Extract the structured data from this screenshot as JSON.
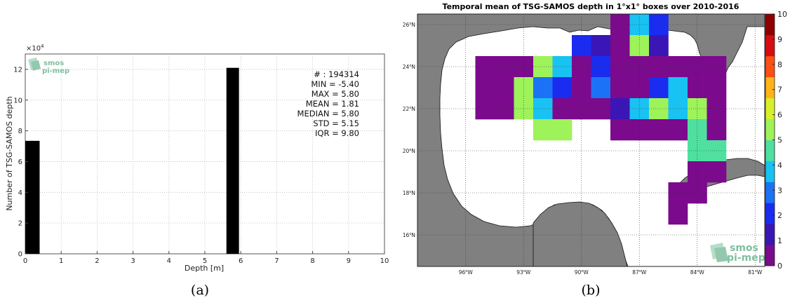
{
  "chart_data": [
    {
      "type": "bar",
      "panel_caption": "(a)",
      "xlabel": "Depth [m]",
      "ylabel": "Number of TSG-SAMOS depth",
      "y_multiplier": "×10",
      "y_multiplier_exp": "4",
      "xlim": [
        0,
        10
      ],
      "ylim": [
        0,
        13
      ],
      "x_ticks": [
        "0",
        "1",
        "2",
        "3",
        "4",
        "5",
        "6",
        "7",
        "8",
        "9",
        "10"
      ],
      "y_ticks": [
        "0",
        "2",
        "4",
        "6",
        "8",
        "10",
        "12"
      ],
      "y_tick_values": [
        0,
        2,
        4,
        6,
        8,
        10,
        12
      ],
      "bars": [
        {
          "x_start": 0.0,
          "x_end": 0.4,
          "value": 7.35
        },
        {
          "x_start": 5.6,
          "x_end": 5.95,
          "value": 12.1
        }
      ],
      "stats": {
        "n": "# : 194314",
        "min": "MIN = -5.40",
        "max": "MAX =  5.80",
        "mean": "MEAN = 1.81",
        "median": "MEDIAN = 5.80",
        "std": "STD = 5.15",
        "iqr": "IQR = 9.80"
      },
      "logo": {
        "line1": "smos",
        "line2": "pi-mep"
      },
      "grid": true,
      "bar_color": "#000000"
    },
    {
      "type": "heatmap",
      "panel_caption": "(b)",
      "title": "Temporal mean of TSG-SAMOS depth in 1°x1° boxes over 2010-2016",
      "lon_range": [
        -98.5,
        -80.5
      ],
      "lat_range": [
        14.5,
        26.5
      ],
      "lon_ticks": [
        {
          "value": -96,
          "deg": "96",
          "hemi": "W"
        },
        {
          "value": -93,
          "deg": "93",
          "hemi": "W"
        },
        {
          "value": -90,
          "deg": "90",
          "hemi": "W"
        },
        {
          "value": -87,
          "deg": "87",
          "hemi": "W"
        },
        {
          "value": -84,
          "deg": "84",
          "hemi": "W"
        },
        {
          "value": -81,
          "deg": "81",
          "hemi": "W"
        }
      ],
      "lat_ticks": [
        {
          "value": 16,
          "deg": "16",
          "hemi": "N"
        },
        {
          "value": 18,
          "deg": "18",
          "hemi": "N"
        },
        {
          "value": 20,
          "deg": "20",
          "hemi": "N"
        },
        {
          "value": 22,
          "deg": "22",
          "hemi": "N"
        },
        {
          "value": 24,
          "deg": "24",
          "hemi": "N"
        },
        {
          "value": 26,
          "deg": "26",
          "hemi": "N"
        }
      ],
      "colorbar": {
        "min": 0,
        "max": 10,
        "ticks": [
          "0",
          "1",
          "2",
          "3",
          "4",
          "5",
          "6",
          "7",
          "8",
          "9",
          "10"
        ],
        "colors": [
          "#7b0a8c",
          "#3a16b6",
          "#1a2cf0",
          "#1c72f5",
          "#18c2f2",
          "#4fe0a0",
          "#9ef25a",
          "#d8f028",
          "#ffb41a",
          "#ff5014",
          "#d80c10",
          "#8e0000"
        ]
      },
      "cells": [
        {
          "lon": -88,
          "lat": 26,
          "value": 0.5
        },
        {
          "lon": -87,
          "lat": 26,
          "value": 3.9
        },
        {
          "lon": -86,
          "lat": 26,
          "value": 2.2
        },
        {
          "lon": -90,
          "lat": 25,
          "value": 2.0
        },
        {
          "lon": -89,
          "lat": 25,
          "value": 1.6
        },
        {
          "lon": -88,
          "lat": 25,
          "value": 0.8
        },
        {
          "lon": -87,
          "lat": 25,
          "value": 5.1
        },
        {
          "lon": -86,
          "lat": 25,
          "value": 0.9
        },
        {
          "lon": -95,
          "lat": 24,
          "value": 0.2
        },
        {
          "lon": -94,
          "lat": 24,
          "value": 0.2
        },
        {
          "lon": -93,
          "lat": 24,
          "value": 0.3
        },
        {
          "lon": -92,
          "lat": 24,
          "value": 5.6
        },
        {
          "lon": -91,
          "lat": 24,
          "value": 3.6
        },
        {
          "lon": -90,
          "lat": 24,
          "value": 0.2
        },
        {
          "lon": -89,
          "lat": 24,
          "value": 2.2
        },
        {
          "lon": -88,
          "lat": 24,
          "value": 0.3
        },
        {
          "lon": -87,
          "lat": 24,
          "value": 0.3
        },
        {
          "lon": -86,
          "lat": 24,
          "value": 0.3
        },
        {
          "lon": -85,
          "lat": 24,
          "value": 0.3
        },
        {
          "lon": -84,
          "lat": 24,
          "value": 0.3
        },
        {
          "lon": -83,
          "lat": 24,
          "value": 0.3
        },
        {
          "lon": -95,
          "lat": 23,
          "value": 0.3
        },
        {
          "lon": -94,
          "lat": 23,
          "value": 0.2
        },
        {
          "lon": -93,
          "lat": 23,
          "value": 5.3
        },
        {
          "lon": -92,
          "lat": 23,
          "value": 2.8
        },
        {
          "lon": -91,
          "lat": 23,
          "value": 2.0
        },
        {
          "lon": -90,
          "lat": 23,
          "value": 0.2
        },
        {
          "lon": -89,
          "lat": 23,
          "value": 2.8
        },
        {
          "lon": -88,
          "lat": 23,
          "value": 0.3
        },
        {
          "lon": -87,
          "lat": 23,
          "value": 0.2
        },
        {
          "lon": -86,
          "lat": 23,
          "value": 1.7
        },
        {
          "lon": -85,
          "lat": 23,
          "value": 3.8
        },
        {
          "lon": -84,
          "lat": 23,
          "value": 0.6
        },
        {
          "lon": -83,
          "lat": 23,
          "value": 0.5
        },
        {
          "lon": -95,
          "lat": 22,
          "value": 0.3
        },
        {
          "lon": -94,
          "lat": 22,
          "value": 0.3
        },
        {
          "lon": -93,
          "lat": 22,
          "value": 5.3
        },
        {
          "lon": -92,
          "lat": 22,
          "value": 4.1
        },
        {
          "lon": -91,
          "lat": 22,
          "value": 0.2
        },
        {
          "lon": -90,
          "lat": 22,
          "value": 0.4
        },
        {
          "lon": -89,
          "lat": 22,
          "value": 0.2
        },
        {
          "lon": -88,
          "lat": 22,
          "value": 1.3
        },
        {
          "lon": -87,
          "lat": 22,
          "value": 3.8
        },
        {
          "lon": -86,
          "lat": 22,
          "value": 5.6
        },
        {
          "lon": -85,
          "lat": 22,
          "value": 3.8
        },
        {
          "lon": -84,
          "lat": 22,
          "value": 5.0
        },
        {
          "lon": -83,
          "lat": 22,
          "value": 0.3
        },
        {
          "lon": -92,
          "lat": 21,
          "value": 5.5
        },
        {
          "lon": -91,
          "lat": 21,
          "value": 5.5
        },
        {
          "lon": -88,
          "lat": 21,
          "value": 0.3
        },
        {
          "lon": -87,
          "lat": 21,
          "value": 0.3
        },
        {
          "lon": -86,
          "lat": 21,
          "value": 0.3
        },
        {
          "lon": -85,
          "lat": 21,
          "value": 0.3
        },
        {
          "lon": -84,
          "lat": 21,
          "value": 4.8
        },
        {
          "lon": -83,
          "lat": 21,
          "value": 0.3
        },
        {
          "lon": -84,
          "lat": 20,
          "value": 4.6
        },
        {
          "lon": -83,
          "lat": 20,
          "value": 4.6
        },
        {
          "lon": -84,
          "lat": 19,
          "value": 0.3
        },
        {
          "lon": -83,
          "lat": 19,
          "value": 0.3
        },
        {
          "lon": -85,
          "lat": 18,
          "value": 0.3
        },
        {
          "lon": -84,
          "lat": 18,
          "value": 0.3
        },
        {
          "lon": -85,
          "lat": 17,
          "value": 0.3
        }
      ],
      "logo": {
        "line1": "smos",
        "line2": "pi-mep"
      }
    }
  ]
}
